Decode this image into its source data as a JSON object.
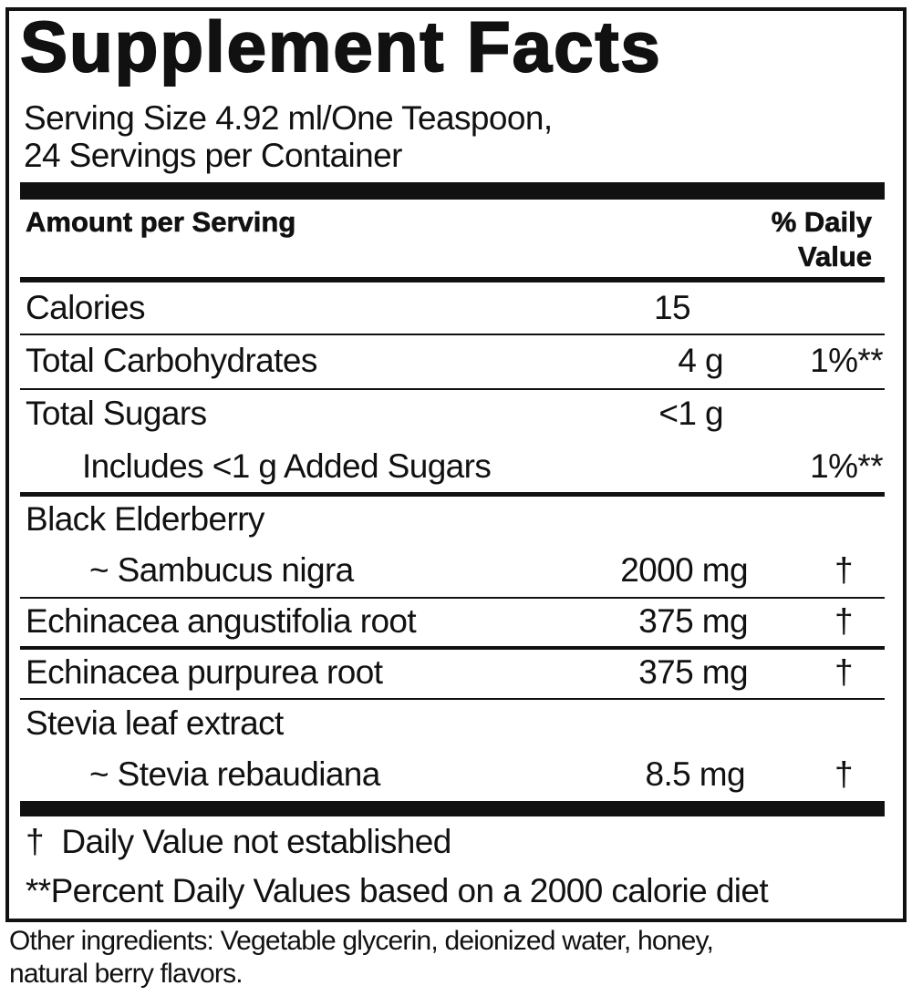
{
  "title": "Supplement Facts",
  "serving_size": "Serving Size 4.92 ml/One Teaspoon,",
  "servings_per_container": "24 Servings per Container",
  "header": {
    "amount": "Amount per Serving",
    "dv_line1": "% Daily",
    "dv_line2": "Value"
  },
  "rows": [
    {
      "name": "Calories",
      "amount": "15",
      "dv": ""
    },
    {
      "name": "Total Carbohydrates",
      "amount": "4 g",
      "dv": "1%**"
    },
    {
      "name": "Total Sugars",
      "amount": "<1 g",
      "dv": ""
    },
    {
      "name": "Includes <1 g Added Sugars",
      "amount": "",
      "dv": "1%**"
    },
    {
      "name": "Black Elderberry",
      "sub": "~ Sambucus nigra",
      "amount": "2000 mg",
      "dv": "†"
    },
    {
      "name": "Echinacea angustifolia root",
      "amount": "375 mg",
      "dv": "†"
    },
    {
      "name": "Echinacea purpurea root",
      "amount": "375 mg",
      "dv": "†"
    },
    {
      "name": "Stevia leaf extract",
      "sub": "~ Stevia rebaudiana",
      "amount": "8.5 mg",
      "dv": "†"
    }
  ],
  "footnotes": [
    "†  Daily Value not established",
    "**Percent Daily Values based on a 2000 calorie diet"
  ],
  "other_ingredients": [
    "Other ingredients: Vegetable glycerin, deionized water, honey,",
    "natural berry flavors."
  ]
}
